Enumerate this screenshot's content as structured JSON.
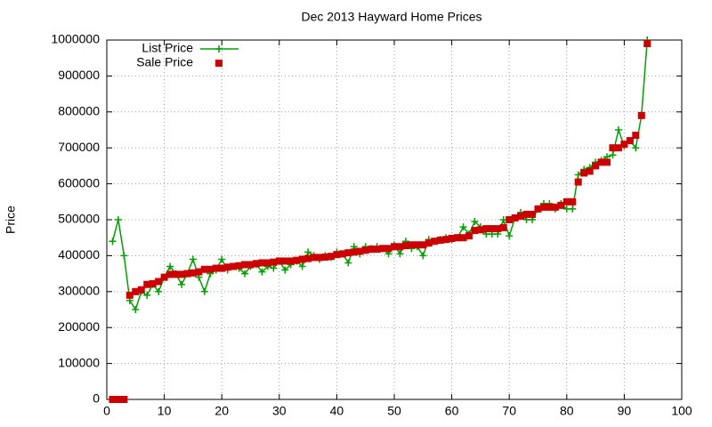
{
  "chart_data": {
    "type": "line",
    "title": "Dec 2013 Hayward Home Prices",
    "y_label": "Price",
    "x": [
      1,
      2,
      3,
      4,
      5,
      6,
      7,
      8,
      9,
      10,
      11,
      12,
      13,
      14,
      15,
      16,
      17,
      18,
      19,
      20,
      21,
      22,
      23,
      24,
      25,
      26,
      27,
      28,
      29,
      30,
      31,
      32,
      33,
      34,
      35,
      36,
      37,
      38,
      39,
      40,
      41,
      42,
      43,
      44,
      45,
      46,
      47,
      48,
      49,
      50,
      51,
      52,
      53,
      54,
      55,
      56,
      57,
      58,
      59,
      60,
      61,
      62,
      63,
      64,
      65,
      66,
      67,
      68,
      69,
      70,
      71,
      72,
      73,
      74,
      75,
      76,
      77,
      78,
      79,
      80,
      81,
      82,
      83,
      84,
      85,
      86,
      87,
      88,
      89,
      90,
      91,
      92,
      93,
      94
    ],
    "series": [
      {
        "name": "List Price",
        "color": "#00a000",
        "style": "linespoints",
        "values": [
          440000,
          500000,
          400000,
          275000,
          250000,
          300000,
          290000,
          320000,
          300000,
          340000,
          370000,
          350000,
          320000,
          350000,
          390000,
          340000,
          300000,
          350000,
          360000,
          390000,
          360000,
          370000,
          365000,
          350000,
          370000,
          375000,
          355000,
          370000,
          365000,
          385000,
          360000,
          375000,
          385000,
          370000,
          410000,
          400000,
          390000,
          400000,
          395000,
          410000,
          405000,
          380000,
          425000,
          405000,
          425000,
          420000,
          425000,
          420000,
          405000,
          430000,
          405000,
          440000,
          420000,
          425000,
          400000,
          445000,
          440000,
          445000,
          450000,
          445000,
          450000,
          480000,
          460000,
          495000,
          480000,
          460000,
          460000,
          460000,
          500000,
          455000,
          505000,
          520000,
          500000,
          500000,
          530000,
          545000,
          545000,
          530000,
          545000,
          530000,
          530000,
          625000,
          640000,
          645000,
          660000,
          665000,
          675000,
          680000,
          750000,
          705000,
          720000,
          700000,
          790000,
          1000000
        ]
      },
      {
        "name": "Sale Price",
        "color": "#cc0000",
        "style": "points",
        "values": [
          0,
          0,
          0,
          290000,
          300000,
          305000,
          320000,
          322000,
          328000,
          340000,
          348000,
          348000,
          348000,
          350000,
          352000,
          355000,
          362000,
          362000,
          365000,
          365000,
          368000,
          370000,
          372000,
          375000,
          375000,
          378000,
          380000,
          380000,
          382000,
          385000,
          385000,
          385000,
          387000,
          390000,
          392000,
          395000,
          395000,
          396000,
          398000,
          403000,
          405000,
          408000,
          410000,
          412000,
          415000,
          418000,
          418000,
          420000,
          420000,
          425000,
          425000,
          428000,
          430000,
          430000,
          430000,
          435000,
          440000,
          443000,
          445000,
          448000,
          450000,
          450000,
          455000,
          470000,
          472000,
          475000,
          475000,
          475000,
          478000,
          500000,
          505000,
          510000,
          515000,
          515000,
          530000,
          535000,
          535000,
          535000,
          540000,
          550000,
          550000,
          605000,
          630000,
          635000,
          650000,
          660000,
          660000,
          700000,
          700000,
          710000,
          720000,
          735000,
          790000,
          990000
        ]
      }
    ],
    "xlim": [
      0,
      100
    ],
    "xticks": [
      0,
      10,
      20,
      30,
      40,
      50,
      60,
      70,
      80,
      90,
      100
    ],
    "ylim": [
      0,
      1000000
    ],
    "yticks": [
      0,
      100000,
      200000,
      300000,
      400000,
      500000,
      600000,
      700000,
      800000,
      900000,
      1000000
    ],
    "grid": true,
    "legend": "top-left"
  }
}
